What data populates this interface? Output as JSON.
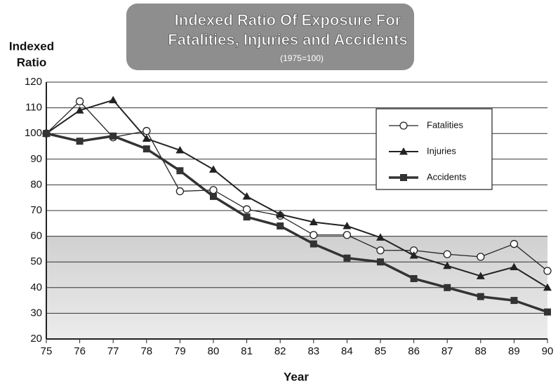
{
  "chart_data": {
    "type": "line",
    "title": [
      "Indexed Ratio Of Exposure For",
      "Fatalities, Injuries and Accidents"
    ],
    "subtitle": "(1975=100)",
    "y_label": [
      "Indexed",
      "Ratio"
    ],
    "x_label": "Year",
    "categories": [
      "75",
      "76",
      "77",
      "78",
      "79",
      "80",
      "81",
      "82",
      "83",
      "84",
      "85",
      "86",
      "87",
      "88",
      "89",
      "90"
    ],
    "series": [
      {
        "name": "Fatalities",
        "color": "#222222",
        "marker": "circle",
        "values": [
          100,
          112.5,
          98.5,
          101,
          77.5,
          78,
          70.5,
          68,
          60.5,
          60.5,
          54.5,
          54.5,
          53,
          52,
          57,
          46.5
        ]
      },
      {
        "name": "Injuries",
        "color": "#222222",
        "marker": "triangle",
        "values": [
          100,
          109,
          113,
          98,
          93.5,
          86,
          75.5,
          68.5,
          65.5,
          64,
          59.5,
          52.5,
          48.5,
          44.5,
          48,
          40
        ]
      },
      {
        "name": "Accidents",
        "color": "#333333",
        "marker": "square",
        "values": [
          100,
          97,
          99,
          94,
          85.5,
          75.5,
          67.5,
          64,
          57,
          51.5,
          50,
          43.5,
          40,
          36.5,
          35,
          30.5
        ]
      }
    ],
    "ylim": [
      20,
      120
    ],
    "yticks": [
      20,
      30,
      40,
      50,
      60,
      70,
      80,
      90,
      100,
      110,
      120
    ],
    "grid": true,
    "legend": "upper right"
  }
}
